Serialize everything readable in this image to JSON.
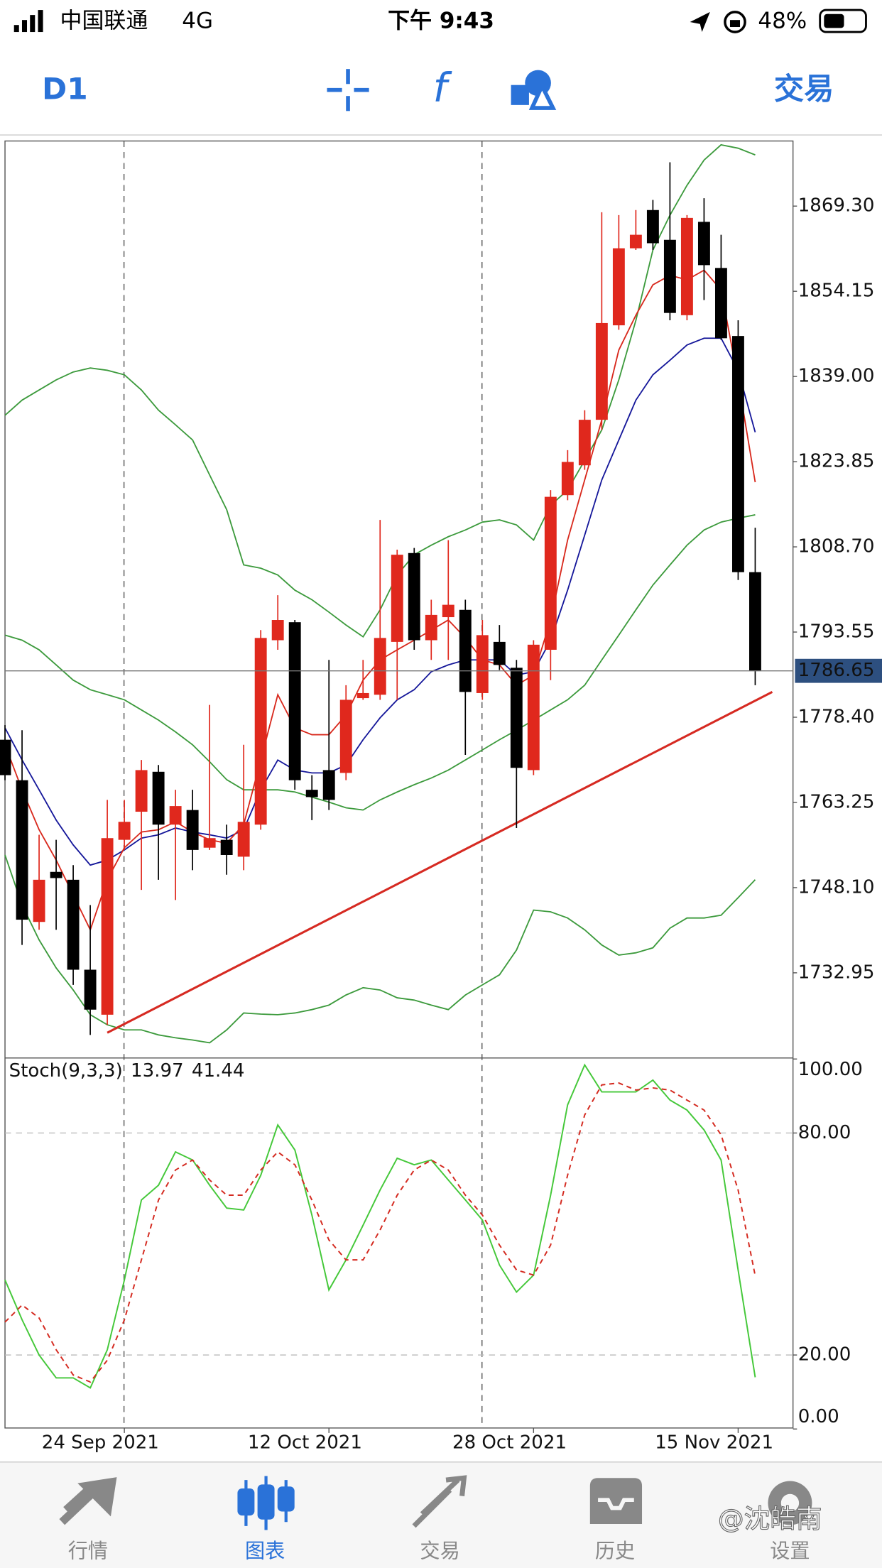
{
  "status_bar": {
    "carrier": "中国联通",
    "network": "4G",
    "time": "下午 9:43",
    "battery": "48%"
  },
  "toolbar": {
    "timeframe": "D1",
    "function_icon": "f",
    "trade": "交易"
  },
  "chart_data": [
    {
      "type": "candlestick",
      "categories": [
        null,
        null,
        null,
        null,
        null,
        null,
        null,
        "24 Sep 2021",
        null,
        null,
        null,
        null,
        null,
        null,
        null,
        null,
        null,
        null,
        null,
        "12 Oct 2021",
        null,
        null,
        null,
        null,
        null,
        null,
        null,
        null,
        null,
        null,
        null,
        "28 Oct 2021",
        null,
        null,
        null,
        null,
        null,
        null,
        null,
        null,
        null,
        null,
        null,
        "15 Nov 2021",
        null
      ],
      "open": [
        1774.4,
        1767.2,
        1742.0,
        1750.9,
        1749.5,
        1733.5,
        1725.5,
        1756.6,
        1761.6,
        1768.7,
        1759.3,
        1761.9,
        1755.2,
        1756.6,
        1753.6,
        1759.3,
        1792.1,
        1795.3,
        1765.5,
        1769.0,
        1768.5,
        1781.8,
        1782.4,
        1791.8,
        1807.6,
        1792.1,
        1796.2,
        1797.5,
        1782.7,
        1791.8,
        1787.2,
        1769.0,
        1790.4,
        1817.9,
        1823.2,
        1831.3,
        1848.1,
        1861.8,
        1868.6,
        1863.3,
        1849.9,
        1866.5,
        1858.3,
        1846.2,
        1804.2
      ],
      "high": [
        1777.0,
        1776.1,
        1757.5,
        1756.6,
        1752.1,
        1745.0,
        1763.7,
        1763.7,
        1770.8,
        1769.9,
        1765.5,
        1765.5,
        1780.6,
        1759.3,
        1773.5,
        1793.9,
        1800.1,
        1795.7,
        1768.1,
        1788.6,
        1784.1,
        1788.6,
        1813.5,
        1808.2,
        1808.5,
        1799.3,
        1809.9,
        1799.3,
        1795.7,
        1794.8,
        1788.6,
        1792.1,
        1818.8,
        1825.9,
        1833.0,
        1868.2,
        1867.7,
        1868.6,
        1870.4,
        1877.1,
        1867.7,
        1870.7,
        1864.2,
        1849.0,
        1812.1
      ],
      "low": [
        1767.2,
        1737.9,
        1740.6,
        1740.6,
        1730.8,
        1721.9,
        1723.7,
        1754.8,
        1747.7,
        1749.5,
        1745.9,
        1751.2,
        1754.8,
        1750.4,
        1751.2,
        1758.4,
        1790.4,
        1765.5,
        1760.1,
        1761.9,
        1767.2,
        1781.5,
        1781.5,
        1781.5,
        1790.4,
        1788.6,
        1788.6,
        1771.7,
        1781.5,
        1786.8,
        1758.7,
        1768.1,
        1785.0,
        1817.0,
        1822.4,
        1829.5,
        1847.3,
        1861.5,
        1861.5,
        1849.0,
        1849.0,
        1852.6,
        1845.5,
        1802.8,
        1784.1
      ],
      "close": [
        1768.1,
        1742.4,
        1749.5,
        1749.8,
        1733.5,
        1726.4,
        1756.9,
        1759.8,
        1769.0,
        1759.3,
        1762.6,
        1754.8,
        1756.9,
        1753.9,
        1759.8,
        1792.5,
        1795.7,
        1767.2,
        1764.2,
        1763.7,
        1781.5,
        1782.7,
        1792.5,
        1807.3,
        1792.1,
        1796.6,
        1798.4,
        1782.9,
        1793.0,
        1787.7,
        1769.4,
        1791.3,
        1817.6,
        1823.8,
        1831.3,
        1848.5,
        1861.8,
        1864.2,
        1862.7,
        1850.3,
        1867.2,
        1858.8,
        1845.8,
        1804.2,
        1786.65
      ],
      "up_color": "#e0281d",
      "down_color": "#000000",
      "ylim": [
        1717.8,
        1880.7
      ],
      "yticks": [
        {
          "value": 1869.3,
          "label": "1869.30"
        },
        1854.15,
        {
          "value": 1839.0,
          "label": "1839.00"
        },
        1823.85,
        {
          "value": 1808.7,
          "label": "1808.70"
        },
        1793.55,
        {
          "value": 1778.4,
          "label": "1778.40"
        },
        1763.25,
        {
          "value": 1748.1,
          "label": "1748.10"
        },
        1732.95
      ],
      "series": [
        {
          "color": "#3c9a3c",
          "values": [
            1832.1,
            1834.8,
            1836.6,
            1838.4,
            1839.8,
            1840.5,
            1840.1,
            1839.3,
            1836.6,
            1833.0,
            1830.4,
            1827.7,
            1821.5,
            1815.3,
            1805.5,
            1804.9,
            1803.7,
            1801.0,
            1799.3,
            1797.1,
            1794.8,
            1792.7,
            1797.5,
            1803.7,
            1807.3,
            1809.0,
            1810.5,
            1811.7,
            1813.1,
            1813.5,
            1812.6,
            1809.9,
            1816.1,
            1818.8,
            1824.1,
            1829.5,
            1838.4,
            1849.0,
            1861.5,
            1867.7,
            1873.0,
            1877.5,
            1880.2,
            1879.6,
            1878.4
          ]
        },
        {
          "color": "#3c9a3c",
          "values": [
            1793.0,
            1792.1,
            1790.4,
            1787.7,
            1785.0,
            1783.3,
            1782.4,
            1781.5,
            1779.7,
            1777.9,
            1775.8,
            1773.5,
            1770.5,
            1767.3,
            1765.5,
            1765.5,
            1765.5,
            1765.1,
            1764.2,
            1763.3,
            1762.3,
            1761.9,
            1763.7,
            1765.1,
            1766.4,
            1767.6,
            1769.0,
            1770.8,
            1772.6,
            1774.4,
            1776.1,
            1777.9,
            1779.7,
            1781.5,
            1784.1,
            1788.6,
            1793.0,
            1797.5,
            1801.9,
            1805.5,
            1809.0,
            1811.7,
            1813.1,
            1813.8,
            1814.4
          ]
        },
        {
          "color": "#3c9a3c",
          "values": [
            1753.9,
            1745.0,
            1738.8,
            1733.8,
            1729.9,
            1725.5,
            1723.7,
            1722.8,
            1722.8,
            1721.9,
            1721.4,
            1721.0,
            1720.5,
            1722.8,
            1725.8,
            1725.6,
            1725.5,
            1725.8,
            1726.4,
            1727.2,
            1729.0,
            1730.3,
            1729.9,
            1728.5,
            1728.1,
            1727.2,
            1726.4,
            1729.0,
            1730.8,
            1732.6,
            1737.0,
            1744.1,
            1743.8,
            1742.7,
            1740.6,
            1737.9,
            1736.1,
            1736.5,
            1737.4,
            1740.9,
            1742.7,
            1742.7,
            1743.2,
            1746.3,
            1749.5
          ]
        },
        {
          "color": "#15179a",
          "values": [
            1776.5,
            1770.8,
            1765.5,
            1760.1,
            1755.7,
            1752.1,
            1753.0,
            1754.8,
            1756.9,
            1757.5,
            1758.7,
            1758.0,
            1757.5,
            1756.9,
            1758.4,
            1765.5,
            1770.8,
            1769.0,
            1768.5,
            1768.5,
            1769.9,
            1774.4,
            1778.3,
            1781.5,
            1783.3,
            1786.5,
            1787.7,
            1788.6,
            1788.6,
            1788.6,
            1785.9,
            1786.5,
            1792.1,
            1801.0,
            1810.8,
            1820.6,
            1827.7,
            1834.8,
            1839.3,
            1841.9,
            1844.6,
            1845.8,
            1845.8,
            1840.1,
            1829.1
          ]
        },
        {
          "color": "#d8281c",
          "values": [
            1773.5,
            1765.5,
            1758.4,
            1753.0,
            1746.8,
            1740.6,
            1749.5,
            1755.2,
            1758.0,
            1758.4,
            1759.8,
            1758.0,
            1756.6,
            1756.0,
            1759.3,
            1770.8,
            1782.4,
            1776.5,
            1775.3,
            1775.3,
            1778.8,
            1785.0,
            1788.6,
            1790.4,
            1792.1,
            1793.9,
            1795.7,
            1792.5,
            1788.6,
            1787.7,
            1784.1,
            1785.9,
            1795.7,
            1809.9,
            1820.6,
            1831.3,
            1843.7,
            1849.9,
            1855.3,
            1857.0,
            1856.2,
            1857.9,
            1854.4,
            1838.4,
            1820.2
          ]
        }
      ],
      "trendline": {
        "color": "#d62a22",
        "x": [
          6,
          45
        ],
        "values": [
          1722.3,
          1782.9
        ]
      }
    },
    {
      "type": "line",
      "title": "Stoch(9,3,3)",
      "ylim": [
        0,
        100
      ],
      "yticks": [
        {
          "value": 0,
          "label": "0.00"
        },
        {
          "value": 20,
          "label": "20.00"
        },
        {
          "value": 80,
          "label": "80.00"
        },
        {
          "value": 100,
          "label": "100.00"
        }
      ],
      "series": [
        {
          "color": "#45c83a",
          "values": [
            40.3,
            29.5,
            20.0,
            13.8,
            13.8,
            11.1,
            21.4,
            40.3,
            61.9,
            65.9,
            74.9,
            72.7,
            65.9,
            59.7,
            59.2,
            68.6,
            82.2,
            75.4,
            57.8,
            37.6,
            45.7,
            55.1,
            64.6,
            73.2,
            71.4,
            72.7,
            67.3,
            61.9,
            56.5,
            44.3,
            37.0,
            41.6,
            63.2,
            87.6,
            98.4,
            91.1,
            91.1,
            91.1,
            94.3,
            88.9,
            86.2,
            80.8,
            72.7,
            43.0,
            13.97
          ]
        },
        {
          "color": "#d42a20",
          "dash": true,
          "values": [
            28.9,
            33.5,
            30.0,
            21.4,
            14.6,
            12.7,
            18.6,
            29.5,
            45.7,
            61.9,
            70.0,
            72.7,
            67.3,
            63.2,
            63.2,
            70.0,
            74.9,
            71.4,
            61.9,
            51.1,
            45.7,
            45.7,
            53.8,
            63.2,
            70.0,
            72.7,
            70.0,
            63.2,
            57.8,
            49.7,
            43.0,
            41.6,
            49.7,
            68.6,
            84.9,
            93.0,
            93.5,
            91.6,
            92.2,
            91.6,
            88.9,
            86.2,
            79.5,
            64.6,
            41.44
          ]
        }
      ]
    }
  ],
  "tab_bar": {
    "tabs": [
      "行情",
      "图表",
      "交易",
      "历史",
      "设置"
    ],
    "active": 1
  },
  "watermark": "@沈皓南"
}
